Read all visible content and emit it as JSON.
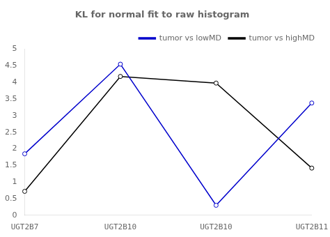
{
  "chart_data": {
    "type": "line",
    "title": "KL for normal fit to raw histogram",
    "categories": [
      "UGT2B7",
      "UGT2B10",
      "UGT2B10",
      "UGT2B11"
    ],
    "series": [
      {
        "name": "tumor vs lowMD",
        "color": "#0000cc",
        "values": [
          1.85,
          4.55,
          0.3,
          3.38
        ],
        "marker": "circle"
      },
      {
        "name": "tumor vs highMD",
        "color": "#000000",
        "values": [
          0.72,
          4.18,
          3.98,
          1.42
        ],
        "marker": "circle"
      }
    ],
    "ylim": [
      0,
      5
    ],
    "yticks": [
      0,
      0.5,
      1,
      1.5,
      2,
      2.5,
      3,
      3.5,
      4,
      4.5,
      5
    ],
    "grid": false,
    "legend": "upper right"
  }
}
